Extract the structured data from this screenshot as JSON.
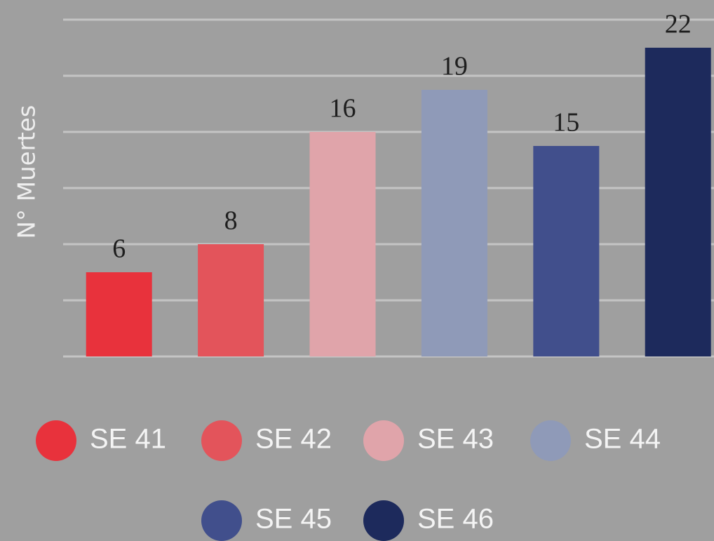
{
  "chart_data": {
    "type": "bar",
    "y_label": "N° Muertes",
    "categories": [
      "SE 41",
      "SE 42",
      "SE 43",
      "SE 44",
      "SE 45",
      "SE 46"
    ],
    "values": [
      6,
      8,
      16,
      19,
      15,
      22
    ],
    "colors": [
      "#e8323c",
      "#e3545b",
      "#e0a4aa",
      "#8f9ab8",
      "#414f8c",
      "#1d2a5c"
    ],
    "ylim": [
      0,
      24
    ],
    "yticks": [
      0,
      4,
      8,
      12,
      16,
      20,
      24
    ],
    "grid": true
  }
}
